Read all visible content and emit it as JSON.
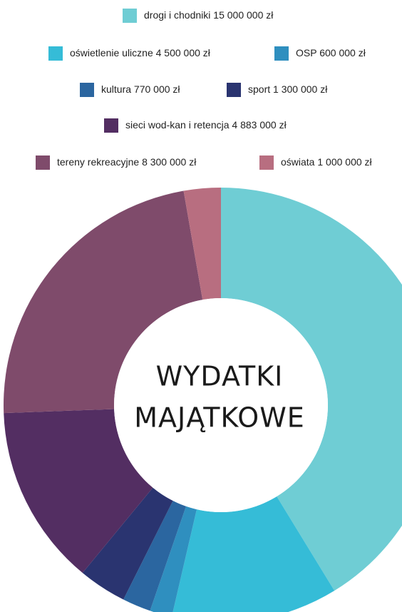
{
  "chart_data": {
    "type": "donut",
    "title_lines": [
      "WYDATKI",
      "MAJĄTKOWE"
    ],
    "series": [
      {
        "name": "drogi i chodniki",
        "color": "#6fcdd4",
        "values": [
          15000000
        ],
        "value_labels": [
          "15 000 000 zł"
        ]
      },
      {
        "name": "oświetlenie uliczne",
        "color": "#35bcd7",
        "values": [
          4500000
        ],
        "value_labels": [
          "4 500 000 zł"
        ]
      },
      {
        "name": "OSP",
        "color": "#2f8fbf",
        "values": [
          600000
        ],
        "value_labels": [
          "600 000 zł"
        ]
      },
      {
        "name": "kultura",
        "color": "#2b66a0",
        "values": [
          770000
        ],
        "value_labels": [
          "770 000 zł"
        ]
      },
      {
        "name": "sport",
        "color": "#2a3470",
        "values": [
          1300000
        ],
        "value_labels": [
          "1 300 000 zł"
        ]
      },
      {
        "name": "sieci wod-kan i retencja",
        "color": "#532e62",
        "values": [
          4883000
        ],
        "value_labels": [
          "4 883 000 zł"
        ]
      },
      {
        "name": "tereny rekreacyjne",
        "color": "#7f4b6b",
        "values": [
          8300000
        ],
        "value_labels": [
          "8 300 000 zł"
        ]
      },
      {
        "name": "oświata",
        "color": "#b86e80",
        "values": [
          1000000
        ],
        "value_labels": [
          "1 000 000 zł"
        ]
      }
    ]
  }
}
